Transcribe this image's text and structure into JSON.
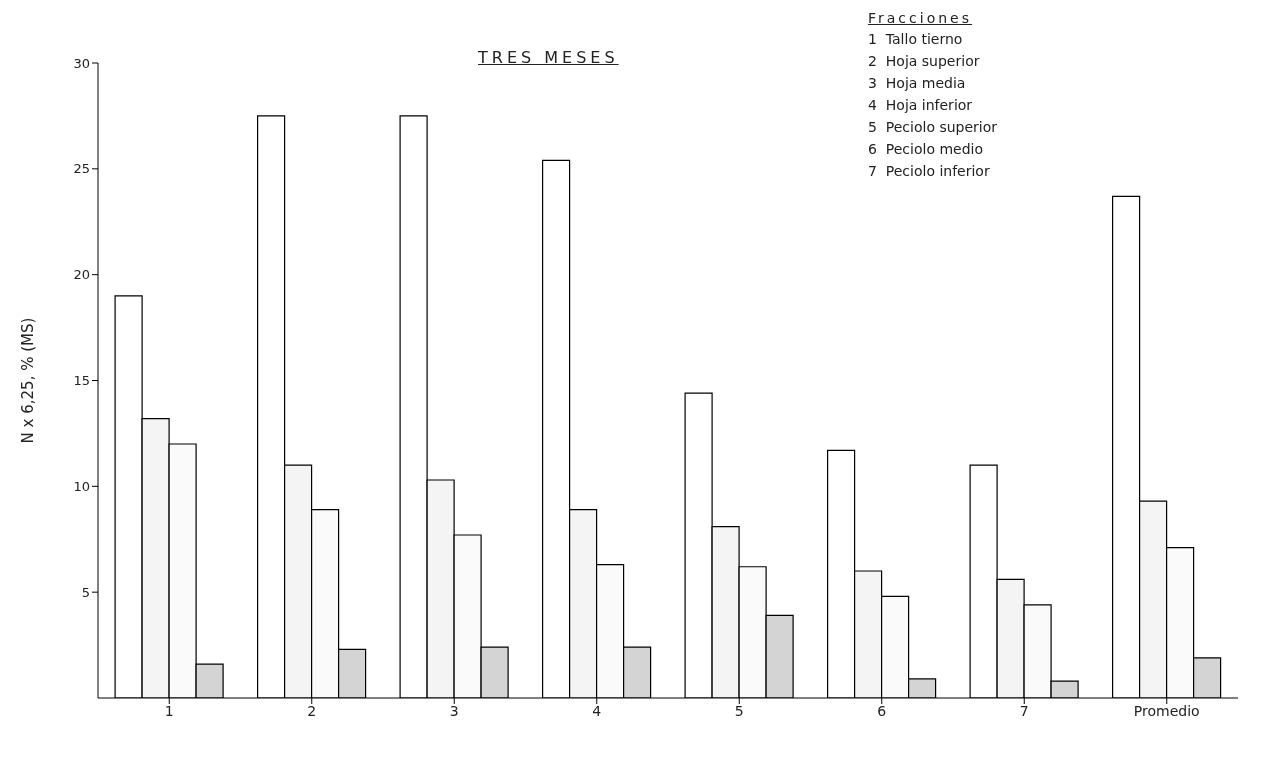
{
  "chart_data": {
    "type": "bar",
    "title": "TRES MESES",
    "ylabel": "N x 6,25, % (MS)",
    "legend_title": "Fracciones",
    "annotations": [
      "1  Tallo tierno",
      "2  Hoja superior",
      "3  Hoja media",
      "4  Hoja inferior",
      "5  Peciolo superior",
      "6  Peciolo medio",
      "7  Peciolo inferior"
    ],
    "categories": [
      "1",
      "2",
      "3",
      "4",
      "5",
      "6",
      "7",
      "Promedio"
    ],
    "series": [
      {
        "color": "#ffffff",
        "values": [
          19.0,
          27.5,
          27.5,
          25.4,
          14.4,
          11.7,
          11.0,
          23.7
        ]
      },
      {
        "color": "#f4f4f4",
        "values": [
          13.2,
          11.0,
          10.3,
          8.9,
          8.1,
          6.0,
          5.6,
          9.3
        ]
      },
      {
        "color": "#fafafa",
        "values": [
          12.0,
          8.9,
          7.7,
          6.3,
          6.2,
          4.8,
          4.4,
          7.1
        ]
      },
      {
        "color": "#d4d4d4",
        "values": [
          1.6,
          2.3,
          2.4,
          2.4,
          3.9,
          0.9,
          0.8,
          1.9
        ]
      }
    ],
    "ylim": [
      0,
      30
    ],
    "yticks": [
      5,
      10,
      15,
      20,
      25,
      30
    ],
    "grid": false
  }
}
